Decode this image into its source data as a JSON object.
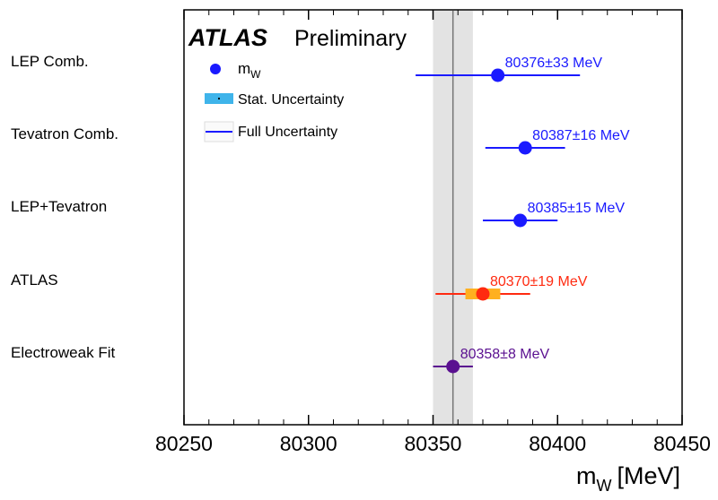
{
  "chart_data": {
    "type": "scatter",
    "title_bold": "ATLAS",
    "title_rest": "Preliminary",
    "xlabel_main": "m",
    "xlabel_sub": "W",
    "xlabel_unit": "[MeV]",
    "xlim": [
      80250,
      80450
    ],
    "xticks": [
      "80250",
      "80300",
      "80350",
      "80400",
      "80450"
    ],
    "grid": false,
    "legend_position": "top-left",
    "legend": {
      "marker_main": "m",
      "marker_sub": "W",
      "stat": "Stat. Uncertainty",
      "full": "Full Uncertainty"
    },
    "reference_band": {
      "center": 80358,
      "lower": 80350,
      "upper": 80366
    },
    "measurements": [
      {
        "label": "LEP Comb.",
        "value": 80376,
        "full_err": 33,
        "stat_err": null,
        "annotation": "80376±33 MeV",
        "color": "#1a1aff"
      },
      {
        "label": "Tevatron Comb.",
        "value": 80387,
        "full_err": 16,
        "stat_err": null,
        "annotation": "80387±16 MeV",
        "color": "#1a1aff"
      },
      {
        "label": "LEP+Tevatron",
        "value": 80385,
        "full_err": 15,
        "stat_err": null,
        "annotation": "80385±15 MeV",
        "color": "#1a1aff"
      },
      {
        "label": "ATLAS",
        "value": 80370,
        "full_err": 19,
        "stat_err": 7,
        "annotation": "80370±19 MeV",
        "color": "#ff2a10"
      },
      {
        "label": "Electroweak Fit",
        "value": 80358,
        "full_err": 8,
        "stat_err": null,
        "annotation": "80358±8 MeV",
        "color": "#5a1090"
      }
    ]
  }
}
